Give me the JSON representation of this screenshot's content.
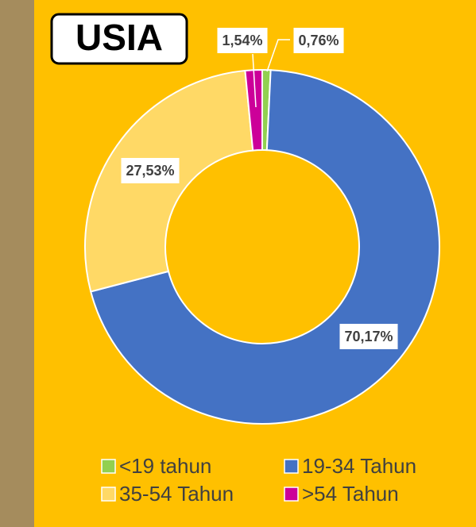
{
  "chart_data": {
    "type": "donut",
    "title": "USIA",
    "categories": [
      "<19 tahun",
      "19-34 Tahun",
      "35-54 Tahun",
      ">54 Tahun"
    ],
    "values": [
      0.76,
      70.17,
      27.53,
      1.54
    ],
    "value_labels": [
      "0,76%",
      "70,17%",
      "27,53%",
      "1,54%"
    ],
    "colors": [
      "#92d050",
      "#4472c4",
      "#ffd966",
      "#cc0099"
    ],
    "legend": "bottom"
  }
}
